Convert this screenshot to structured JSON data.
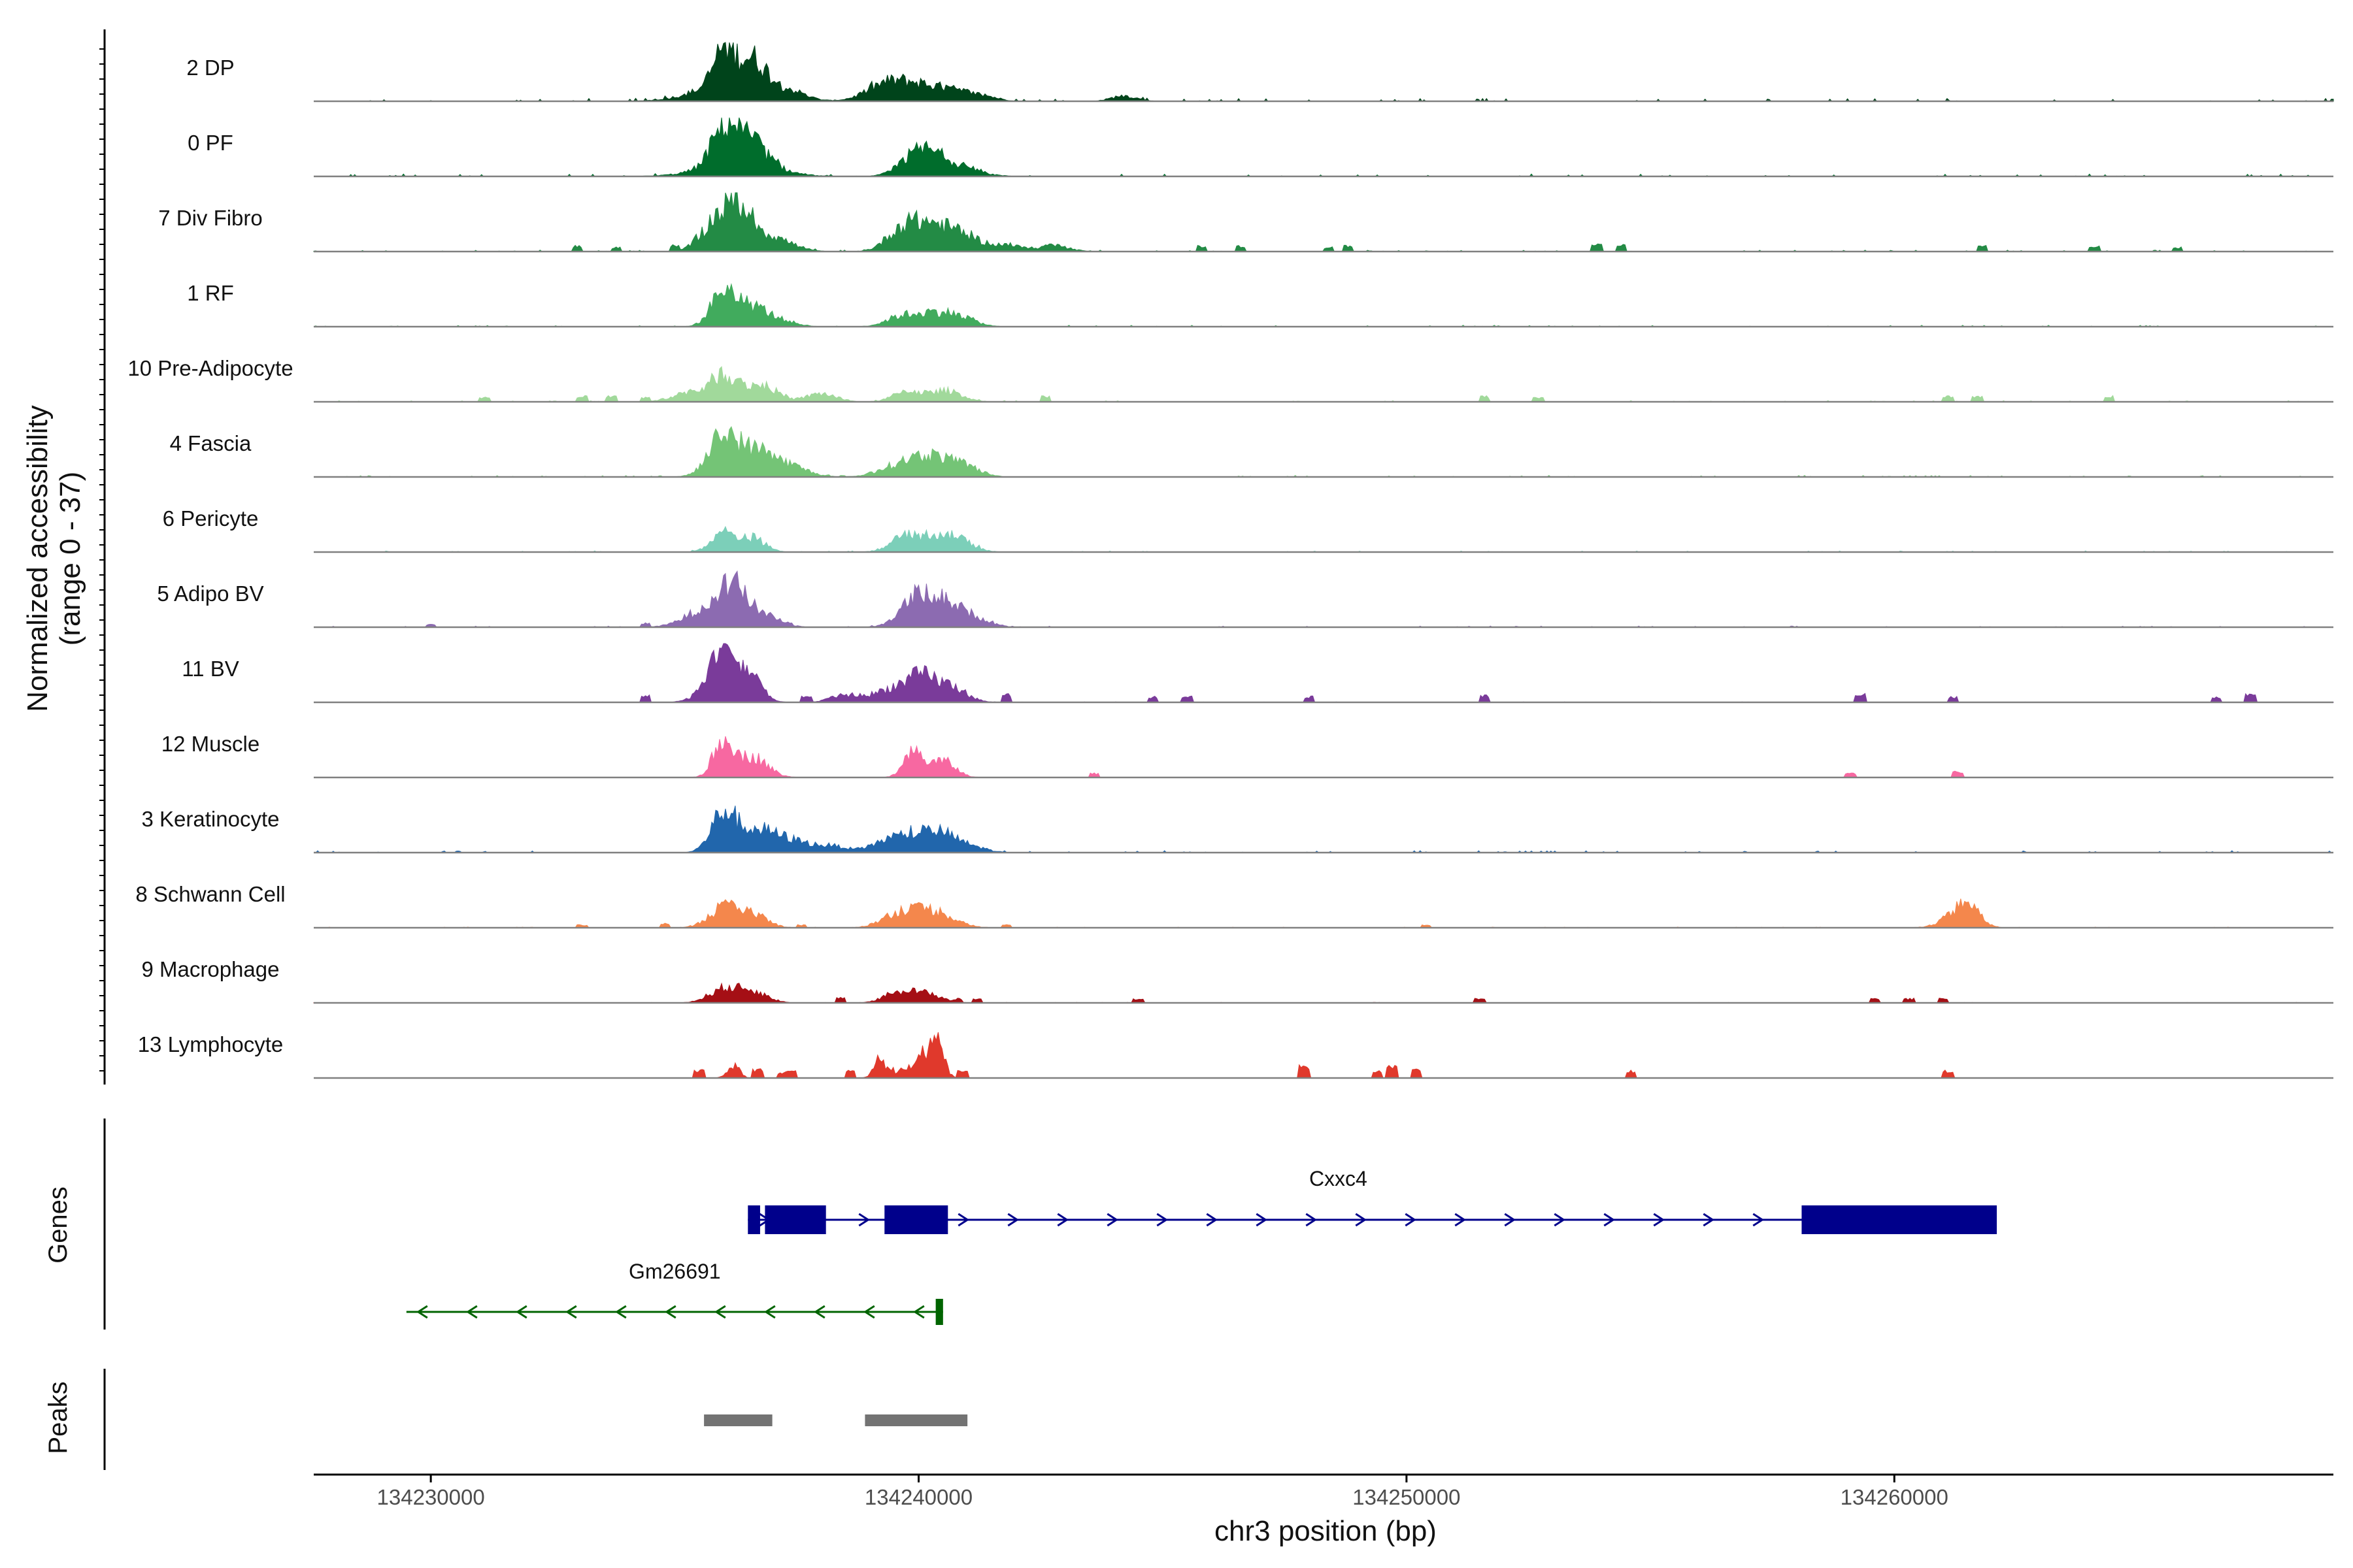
{
  "chart_data": {
    "type": "area",
    "title": "",
    "xlabel": "chr3 position (bp)",
    "ylabel": "Normalized accessibility",
    "ylabel_range": "(range 0 - 37)",
    "xlim": [
      134227600,
      134269000
    ],
    "ylim": [
      0,
      37
    ],
    "x_ticks": [
      {
        "value": 134230000,
        "label": "134230000"
      },
      {
        "value": 134240000,
        "label": "134240000"
      },
      {
        "value": 134250000,
        "label": "134250000"
      },
      {
        "value": 134260000,
        "label": "134260000"
      }
    ],
    "series": [
      {
        "name": "2 DP",
        "color": "#00441b",
        "peaks": [
          [
            134236000,
            25,
            200
          ],
          [
            134236600,
            20,
            300
          ],
          [
            134236200,
            14,
            700
          ],
          [
            134237400,
            5,
            300
          ],
          [
            134239300,
            8,
            400
          ],
          [
            134240000,
            12,
            600
          ],
          [
            134241000,
            4,
            400
          ],
          [
            134244200,
            4,
            250
          ],
          [
            134241500,
            1,
            200
          ]
        ],
        "islands": [],
        "noise": 1.2
      },
      {
        "name": "0 PF",
        "color": "#006d2c",
        "peaks": [
          [
            134236000,
            24,
            250
          ],
          [
            134236500,
            18,
            350
          ],
          [
            134236300,
            10,
            700
          ],
          [
            134240000,
            16,
            350
          ],
          [
            134240500,
            8,
            400
          ],
          [
            134241000,
            3,
            400
          ]
        ],
        "islands": [],
        "noise": 1.0
      },
      {
        "name": "7 Div Fibro",
        "color": "#238b45",
        "peaks": [
          [
            134236300,
            30,
            300
          ],
          [
            134235800,
            18,
            300
          ],
          [
            134237000,
            10,
            400
          ],
          [
            134239600,
            12,
            300
          ],
          [
            134240200,
            20,
            400
          ],
          [
            134240900,
            10,
            300
          ],
          [
            134241700,
            5,
            400
          ],
          [
            134242800,
            4,
            300
          ]
        ],
        "islands": [
          [
            134233000,
            4
          ],
          [
            134233800,
            3
          ],
          [
            134235000,
            5
          ],
          [
            134242700,
            5
          ],
          [
            134245800,
            4
          ],
          [
            134246600,
            4
          ],
          [
            134248400,
            3
          ],
          [
            134248800,
            4
          ],
          [
            134253900,
            5
          ],
          [
            134254400,
            5
          ],
          [
            134261800,
            4
          ],
          [
            134264100,
            4
          ],
          [
            134265800,
            3
          ]
        ],
        "noise": 0.6
      },
      {
        "name": "1 RF",
        "color": "#41ab5d",
        "peaks": [
          [
            134236000,
            26,
            250
          ],
          [
            134236600,
            14,
            300
          ],
          [
            134237200,
            4,
            300
          ],
          [
            134239600,
            6,
            300
          ],
          [
            134240300,
            10,
            400
          ],
          [
            134240900,
            5,
            300
          ]
        ],
        "islands": [],
        "noise": 0.6
      },
      {
        "name": "10 Pre-Adipocyte",
        "color": "#a1d99b",
        "peaks": [
          [
            134236000,
            20,
            300
          ],
          [
            134236800,
            12,
            300
          ],
          [
            134235200,
            6,
            300
          ],
          [
            134238000,
            6,
            300
          ],
          [
            134239800,
            8,
            300
          ],
          [
            134240600,
            8,
            300
          ]
        ],
        "islands": [
          [
            134231100,
            3
          ],
          [
            134233100,
            4
          ],
          [
            134233700,
            4
          ],
          [
            134234400,
            3
          ],
          [
            134242600,
            4
          ],
          [
            134251600,
            4
          ],
          [
            134252700,
            3
          ],
          [
            134261100,
            4
          ],
          [
            134261700,
            4
          ],
          [
            134264400,
            4
          ]
        ],
        "noise": 0.5
      },
      {
        "name": "4 Fascia",
        "color": "#74c476",
        "peaks": [
          [
            134236000,
            30,
            300
          ],
          [
            134236700,
            18,
            350
          ],
          [
            134237400,
            7,
            350
          ],
          [
            134239600,
            8,
            400
          ],
          [
            134240300,
            14,
            400
          ],
          [
            134241000,
            6,
            300
          ]
        ],
        "islands": [],
        "noise": 0.6
      },
      {
        "name": "6 Pericyte",
        "color": "#7ccfb9",
        "peaks": [
          [
            134236000,
            14,
            250
          ],
          [
            134236600,
            10,
            250
          ],
          [
            134239700,
            10,
            300
          ],
          [
            134240400,
            12,
            350
          ],
          [
            134240900,
            5,
            300
          ]
        ],
        "islands": [],
        "noise": 0.5
      },
      {
        "name": "5 Adipo BV",
        "color": "#8c6bb1",
        "peaks": [
          [
            134236200,
            28,
            300
          ],
          [
            134235600,
            12,
            400
          ],
          [
            134236900,
            8,
            300
          ],
          [
            134240000,
            22,
            350
          ],
          [
            134240600,
            14,
            350
          ],
          [
            134241200,
            5,
            300
          ]
        ],
        "islands": [
          [
            134230000,
            2
          ],
          [
            134234400,
            3
          ]
        ],
        "noise": 0.5
      },
      {
        "name": "11 BV",
        "color": "#7a3b9a",
        "peaks": [
          [
            134236000,
            32,
            200
          ],
          [
            134236500,
            22,
            250
          ],
          [
            134235800,
            14,
            300
          ],
          [
            134239500,
            10,
            400
          ],
          [
            134240100,
            16,
            300
          ],
          [
            134240700,
            10,
            300
          ],
          [
            134238500,
            5,
            300
          ]
        ],
        "islands": [
          [
            134234400,
            5
          ],
          [
            134237700,
            4
          ],
          [
            134238200,
            4
          ],
          [
            134241800,
            6
          ],
          [
            134244800,
            4
          ],
          [
            134245500,
            4
          ],
          [
            134248000,
            4
          ],
          [
            134251600,
            5
          ],
          [
            134259300,
            6
          ],
          [
            134261200,
            4
          ],
          [
            134266600,
            4
          ],
          [
            134267300,
            6
          ]
        ],
        "noise": 0.2
      },
      {
        "name": "12 Muscle",
        "color": "#f768a1",
        "peaks": [
          [
            134236000,
            28,
            200
          ],
          [
            134236600,
            15,
            300
          ],
          [
            134239900,
            18,
            200
          ],
          [
            134240500,
            12,
            250
          ]
        ],
        "islands": [
          [
            134243600,
            3
          ],
          [
            134259100,
            3
          ],
          [
            134261300,
            4
          ]
        ],
        "noise": 0.15
      },
      {
        "name": "3 Keratinocyte",
        "color": "#2166ac",
        "peaks": [
          [
            134236000,
            28,
            250
          ],
          [
            134236700,
            16,
            400
          ],
          [
            134237500,
            7,
            400
          ],
          [
            134238300,
            4,
            300
          ],
          [
            134239300,
            7,
            300
          ],
          [
            134239900,
            12,
            350
          ],
          [
            134240500,
            12,
            300
          ],
          [
            134241100,
            4,
            300
          ]
        ],
        "islands": [],
        "noise": 0.8
      },
      {
        "name": "8 Schwann Cell",
        "color": "#f4874c",
        "peaks": [
          [
            134236000,
            14,
            300
          ],
          [
            134236600,
            9,
            300
          ],
          [
            134239600,
            10,
            350
          ],
          [
            134240300,
            12,
            400
          ],
          [
            134261500,
            14,
            250
          ],
          [
            134261200,
            6,
            300
          ]
        ],
        "islands": [
          [
            134233100,
            2
          ],
          [
            134234800,
            3
          ],
          [
            134237600,
            2
          ],
          [
            134241800,
            2
          ],
          [
            134250400,
            2
          ]
        ],
        "noise": 0.3
      },
      {
        "name": "9 Macrophage",
        "color": "#a50f15",
        "peaks": [
          [
            134236000,
            10,
            300
          ],
          [
            134236600,
            8,
            300
          ],
          [
            134239600,
            8,
            300
          ],
          [
            134240200,
            6,
            300
          ]
        ],
        "islands": [
          [
            134238400,
            4
          ],
          [
            134240800,
            3
          ],
          [
            134241200,
            3
          ],
          [
            134244500,
            3
          ],
          [
            134251500,
            3
          ],
          [
            134259600,
            3
          ],
          [
            134260300,
            3
          ],
          [
            134261000,
            3
          ]
        ],
        "noise": 0.2
      },
      {
        "name": "13 Lymphocyte",
        "color": "#e0392c",
        "peaks": [
          [
            134240400,
            32,
            120
          ],
          [
            134240100,
            18,
            150
          ],
          [
            134239200,
            14,
            120
          ],
          [
            134236200,
            10,
            120
          ],
          [
            134239700,
            6,
            150
          ]
        ],
        "islands": [
          [
            134235500,
            6
          ],
          [
            134236700,
            6
          ],
          [
            134237200,
            4
          ],
          [
            134237400,
            5
          ],
          [
            134238600,
            5
          ],
          [
            134239400,
            7
          ],
          [
            134240900,
            6
          ],
          [
            134247900,
            9
          ],
          [
            134249700,
            8
          ],
          [
            134249400,
            5
          ],
          [
            134250200,
            6
          ],
          [
            134254600,
            5
          ],
          [
            134261100,
            5
          ]
        ],
        "noise": 0.1
      }
    ],
    "genes": [
      {
        "name": "Cxxc4",
        "strand": "+",
        "color": "#00008b",
        "start": 134236500,
        "end": 134262100,
        "exons": [
          [
            134236500,
            134236750
          ],
          [
            134236850,
            134238100
          ],
          [
            134239300,
            134240600
          ],
          [
            134258100,
            134262100
          ]
        ]
      },
      {
        "name": "Gm26691",
        "strand": "-",
        "color": "#006400",
        "start": 134229500,
        "end": 134240500,
        "exons": [
          [
            134240350,
            134240500
          ]
        ]
      }
    ],
    "peaks": [
      {
        "start": 134235600,
        "end": 134237000
      },
      {
        "start": 134238900,
        "end": 134241000
      }
    ],
    "panel_titles": {
      "genes": "Genes",
      "peaks": "Peaks"
    }
  }
}
